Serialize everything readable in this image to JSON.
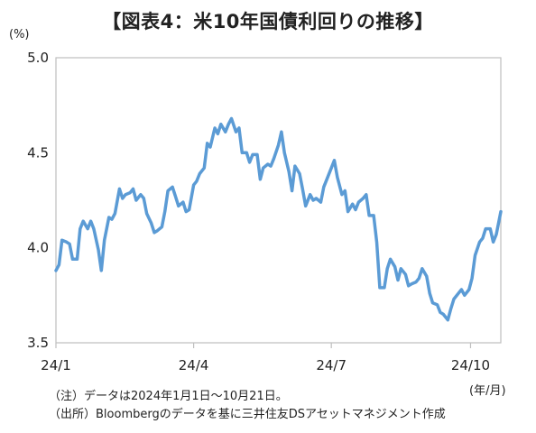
{
  "chart_data": {
    "type": "line",
    "title": "【図表4：米10年国債利回りの推移】",
    "y_unit": "(%)",
    "x_unit": "(年/月)",
    "ylim": [
      3.5,
      5.0
    ],
    "y_ticks": [
      "5.0",
      "4.5",
      "4.0",
      "3.5"
    ],
    "y_tick_values": [
      5.0,
      4.5,
      4.0,
      3.5
    ],
    "x_ticks": [
      "24/1",
      "24/4",
      "24/7",
      "24/10"
    ],
    "x_tick_dates": [
      "2024-01-01",
      "2024-04-01",
      "2024-07-01",
      "2024-10-01"
    ],
    "xlim": [
      "2024-01-01",
      "2024-10-21"
    ],
    "grid": false,
    "legend": "none",
    "series_color": "#5b9bd5",
    "series": [
      {
        "dates": [
          "2024-01-01",
          "2024-01-03",
          "2024-01-05",
          "2024-01-08",
          "2024-01-10",
          "2024-01-12",
          "2024-01-15",
          "2024-01-17",
          "2024-01-19",
          "2024-01-22",
          "2024-01-24",
          "2024-01-26",
          "2024-01-29",
          "2024-01-31",
          "2024-02-02",
          "2024-02-05",
          "2024-02-07",
          "2024-02-09",
          "2024-02-12",
          "2024-02-14",
          "2024-02-16",
          "2024-02-19",
          "2024-02-21",
          "2024-02-23",
          "2024-02-26",
          "2024-02-28",
          "2024-03-01",
          "2024-03-04",
          "2024-03-06",
          "2024-03-08",
          "2024-03-11",
          "2024-03-13",
          "2024-03-15",
          "2024-03-18",
          "2024-03-20",
          "2024-03-22",
          "2024-03-25",
          "2024-03-27",
          "2024-03-29",
          "2024-04-01",
          "2024-04-03",
          "2024-04-05",
          "2024-04-08",
          "2024-04-10",
          "2024-04-12",
          "2024-04-15",
          "2024-04-17",
          "2024-04-19",
          "2024-04-22",
          "2024-04-24",
          "2024-04-26",
          "2024-04-29",
          "2024-05-01",
          "2024-05-03",
          "2024-05-06",
          "2024-05-08",
          "2024-05-10",
          "2024-05-13",
          "2024-05-15",
          "2024-05-17",
          "2024-05-20",
          "2024-05-22",
          "2024-05-24",
          "2024-05-27",
          "2024-05-29",
          "2024-05-31",
          "2024-06-03",
          "2024-06-05",
          "2024-06-07",
          "2024-06-10",
          "2024-06-12",
          "2024-06-14",
          "2024-06-17",
          "2024-06-19",
          "2024-06-21",
          "2024-06-24",
          "2024-06-26",
          "2024-06-28",
          "2024-07-01",
          "2024-07-03",
          "2024-07-05",
          "2024-07-08",
          "2024-07-10",
          "2024-07-12",
          "2024-07-15",
          "2024-07-17",
          "2024-07-19",
          "2024-07-22",
          "2024-07-24",
          "2024-07-26",
          "2024-07-29",
          "2024-07-31",
          "2024-08-02",
          "2024-08-05",
          "2024-08-07",
          "2024-08-09",
          "2024-08-12",
          "2024-08-14",
          "2024-08-16",
          "2024-08-19",
          "2024-08-21",
          "2024-08-23",
          "2024-08-26",
          "2024-08-28",
          "2024-08-30",
          "2024-09-02",
          "2024-09-04",
          "2024-09-06",
          "2024-09-09",
          "2024-09-11",
          "2024-09-13",
          "2024-09-16",
          "2024-09-18",
          "2024-09-20",
          "2024-09-23",
          "2024-09-25",
          "2024-09-27",
          "2024-09-30",
          "2024-10-02",
          "2024-10-04",
          "2024-10-07",
          "2024-10-09",
          "2024-10-11",
          "2024-10-14",
          "2024-10-16",
          "2024-10-18",
          "2024-10-21"
        ],
        "values": [
          3.88,
          3.91,
          4.04,
          4.03,
          4.02,
          3.94,
          3.94,
          4.1,
          4.14,
          4.1,
          4.14,
          4.1,
          3.99,
          3.88,
          4.04,
          4.16,
          4.15,
          4.18,
          4.31,
          4.26,
          4.28,
          4.29,
          4.31,
          4.25,
          4.28,
          4.26,
          4.18,
          4.13,
          4.08,
          4.09,
          4.11,
          4.19,
          4.3,
          4.32,
          4.27,
          4.22,
          4.24,
          4.19,
          4.2,
          4.33,
          4.35,
          4.39,
          4.42,
          4.55,
          4.53,
          4.63,
          4.6,
          4.65,
          4.61,
          4.65,
          4.68,
          4.61,
          4.63,
          4.5,
          4.5,
          4.45,
          4.49,
          4.49,
          4.36,
          4.42,
          4.44,
          4.43,
          4.47,
          4.54,
          4.61,
          4.5,
          4.4,
          4.3,
          4.43,
          4.39,
          4.31,
          4.22,
          4.28,
          4.25,
          4.26,
          4.24,
          4.32,
          4.36,
          4.42,
          4.46,
          4.37,
          4.28,
          4.3,
          4.19,
          4.23,
          4.2,
          4.24,
          4.26,
          4.28,
          4.17,
          4.17,
          4.03,
          3.79,
          3.79,
          3.89,
          3.94,
          3.9,
          3.83,
          3.89,
          3.86,
          3.8,
          3.81,
          3.82,
          3.84,
          3.89,
          3.85,
          3.76,
          3.71,
          3.7,
          3.66,
          3.65,
          3.62,
          3.68,
          3.73,
          3.76,
          3.78,
          3.75,
          3.78,
          3.84,
          3.96,
          4.03,
          4.05,
          4.1,
          4.1,
          4.03,
          4.07,
          4.19
        ]
      }
    ]
  },
  "notes": [
    "（注）データは2024年1月1日～10月21日。",
    "（出所）Bloombergのデータを基に三井住友DSアセットマネジメント作成"
  ]
}
